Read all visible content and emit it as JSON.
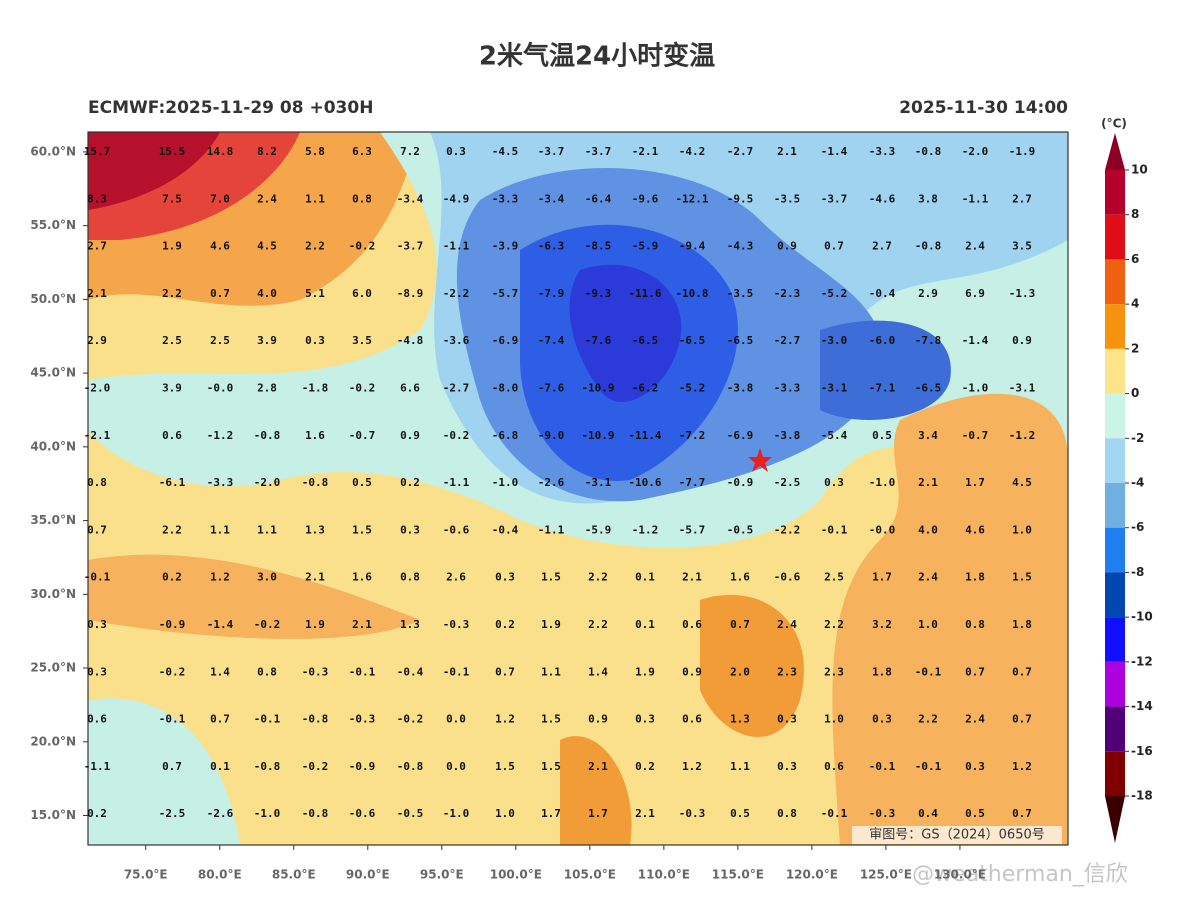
{
  "header": {
    "title": "2米气温24小时变温",
    "run": "ECMWF:2025-11-29 08 +030H",
    "valid": "2025-11-30 14:00"
  },
  "map": {
    "xlim": [
      71.1,
      137.3
    ],
    "ylim": [
      13.0,
      61.35
    ],
    "xticks": [
      {
        "value": 75,
        "label": "75.0°E"
      },
      {
        "value": 80,
        "label": "80.0°E"
      },
      {
        "value": 85,
        "label": "85.0°E"
      },
      {
        "value": 90,
        "label": "90.0°E"
      },
      {
        "value": 95,
        "label": "95.0°E"
      },
      {
        "value": 100,
        "label": "100.0°E"
      },
      {
        "value": 105,
        "label": "105.0°E"
      },
      {
        "value": 110,
        "label": "110.0°E"
      },
      {
        "value": 115,
        "label": "115.0°E"
      },
      {
        "value": 120,
        "label": "120.0°E"
      },
      {
        "value": 125,
        "label": "125.0°E"
      },
      {
        "value": 130,
        "label": "130.0°E"
      }
    ],
    "yticks": [
      {
        "value": 60,
        "label": "60.0°N"
      },
      {
        "value": 55,
        "label": "55.0°N"
      },
      {
        "value": 50,
        "label": "50.0°N"
      },
      {
        "value": 45,
        "label": "45.0°N"
      },
      {
        "value": 40,
        "label": "40.0°N"
      },
      {
        "value": 35,
        "label": "35.0°N"
      },
      {
        "value": 30,
        "label": "30.0°N"
      },
      {
        "value": 25,
        "label": "25.0°N"
      },
      {
        "value": 20,
        "label": "20.0°N"
      },
      {
        "value": 15,
        "label": "15.0°N"
      }
    ],
    "grid_values": [
      [
        "15.7",
        "15.5",
        "14.8",
        "8.2",
        "5.8",
        "6.3",
        "7.2",
        "0.3",
        "-4.5",
        "-3.7",
        "-3.7",
        "-2.1",
        "-4.2",
        "-2.7",
        "2.1",
        "-1.4",
        "-3.3",
        "-0.8",
        "-2.0",
        "-1.9"
      ],
      [
        "8.3",
        "7.5",
        "7.0",
        "2.4",
        "1.1",
        "0.8",
        "-3.4",
        "-4.9",
        "-3.3",
        "-3.4",
        "-6.4",
        "-9.6",
        "-12.1",
        "-9.5",
        "-3.5",
        "-3.7",
        "-4.6",
        "3.8",
        "-1.1",
        "2.7"
      ],
      [
        "2.7",
        "1.9",
        "4.6",
        "4.5",
        "2.2",
        "-0.2",
        "-3.7",
        "-1.1",
        "-3.9",
        "-6.3",
        "-8.5",
        "-5.9",
        "-9.4",
        "-4.3",
        "0.9",
        "0.7",
        "2.7",
        "-0.8",
        "2.4",
        "3.5"
      ],
      [
        "2.1",
        "2.2",
        "0.7",
        "4.0",
        "5.1",
        "6.0",
        "-8.9",
        "-2.2",
        "-5.7",
        "-7.9",
        "-9.3",
        "-11.6",
        "-10.8",
        "-3.5",
        "-2.3",
        "-5.2",
        "-0.4",
        "2.9",
        "6.9",
        "-1.3"
      ],
      [
        "2.9",
        "2.5",
        "2.5",
        "3.9",
        "0.3",
        "3.5",
        "-4.8",
        "-3.6",
        "-6.9",
        "-7.4",
        "-7.6",
        "-6.5",
        "-6.5",
        "-6.5",
        "-2.7",
        "-3.0",
        "-6.0",
        "-7.8",
        "-1.4",
        "0.9"
      ],
      [
        "-2.0",
        "3.9",
        "-0.0",
        "2.8",
        "-1.8",
        "-0.2",
        "6.6",
        "-2.7",
        "-8.0",
        "-7.6",
        "-10.9",
        "-6.2",
        "-5.2",
        "-3.8",
        "-3.3",
        "-3.1",
        "-7.1",
        "-6.5",
        "-1.0",
        "-3.1"
      ],
      [
        "-2.1",
        "0.6",
        "-1.2",
        "-0.8",
        "1.6",
        "-0.7",
        "0.9",
        "-0.2",
        "-6.8",
        "-9.0",
        "-10.9",
        "-11.4",
        "-7.2",
        "-6.9",
        "-3.8",
        "-5.4",
        "0.5",
        "3.4",
        "-0.7",
        "-1.2"
      ],
      [
        "0.8",
        "-6.1",
        "-3.3",
        "-2.0",
        "-0.8",
        "0.5",
        "0.2",
        "-1.1",
        "-1.0",
        "-2.6",
        "-3.1",
        "-10.6",
        "-7.7",
        "-0.9",
        "-2.5",
        "0.3",
        "-1.0",
        "2.1",
        "1.7",
        "4.5"
      ],
      [
        "0.7",
        "2.2",
        "1.1",
        "1.1",
        "1.3",
        "1.5",
        "0.3",
        "-0.6",
        "-0.4",
        "-1.1",
        "-5.9",
        "-1.2",
        "-5.7",
        "-0.5",
        "-2.2",
        "-0.1",
        "-0.0",
        "4.0",
        "4.6",
        "1.0"
      ],
      [
        "-0.1",
        "0.2",
        "1.2",
        "3.0",
        "2.1",
        "1.6",
        "0.8",
        "2.6",
        "0.3",
        "1.5",
        "2.2",
        "0.1",
        "2.1",
        "1.6",
        "-0.6",
        "2.5",
        "1.7",
        "2.4",
        "1.8",
        "1.5"
      ],
      [
        "0.3",
        "-0.9",
        "-1.4",
        "-0.2",
        "1.9",
        "2.1",
        "1.3",
        "-0.3",
        "0.2",
        "1.9",
        "2.2",
        "0.1",
        "0.6",
        "0.7",
        "2.4",
        "2.2",
        "3.2",
        "1.0",
        "0.8",
        "1.8"
      ],
      [
        "0.3",
        "-0.2",
        "1.4",
        "0.8",
        "-0.3",
        "-0.1",
        "-0.4",
        "-0.1",
        "0.7",
        "1.1",
        "1.4",
        "1.9",
        "0.9",
        "2.0",
        "2.3",
        "2.3",
        "1.8",
        "-0.1",
        "0.7",
        "0.7"
      ],
      [
        "0.6",
        "-0.1",
        "0.7",
        "-0.1",
        "-0.8",
        "-0.3",
        "-0.2",
        "0.0",
        "1.2",
        "1.5",
        "0.9",
        "0.3",
        "0.6",
        "1.3",
        "0.3",
        "1.0",
        "0.3",
        "2.2",
        "2.4",
        "0.7"
      ],
      [
        "-1.1",
        "0.7",
        "0.1",
        "-0.8",
        "-0.2",
        "-0.9",
        "-0.8",
        "0.0",
        "1.5",
        "1.5",
        "2.1",
        "0.2",
        "1.2",
        "1.1",
        "0.3",
        "0.6",
        "-0.1",
        "-0.1",
        "0.3",
        "1.2"
      ],
      [
        "0.2",
        "-2.5",
        "-2.6",
        "-1.0",
        "-0.8",
        "-0.6",
        "-0.5",
        "-1.0",
        "1.0",
        "1.7",
        "1.7",
        "2.1",
        "-0.3",
        "0.5",
        "0.8",
        "-0.1",
        "-0.3",
        "0.4",
        "0.5",
        "0.7"
      ]
    ]
  },
  "colorbar": {
    "unit": "(°C)",
    "clim": [
      -18,
      10
    ],
    "ticks": [
      10,
      8,
      6,
      4,
      2,
      0,
      -2,
      -4,
      -6,
      -8,
      -10,
      -12,
      -14,
      -16,
      -18
    ],
    "colors": [
      "#b5002c",
      "#e00d16",
      "#ef6010",
      "#f7920f",
      "#fde38a",
      "#c9f4e6",
      "#a2d6f0",
      "#6fb0e0",
      "#1f7ff0",
      "#0047b0",
      "#1010ff",
      "#ad00df",
      "#52007a",
      "#800000"
    ],
    "over_color": "#8c0024",
    "under_color": "#3a0000"
  },
  "stamp": "审图号：GS（2024）0650号",
  "watermark": "@weatherman_信欣"
}
